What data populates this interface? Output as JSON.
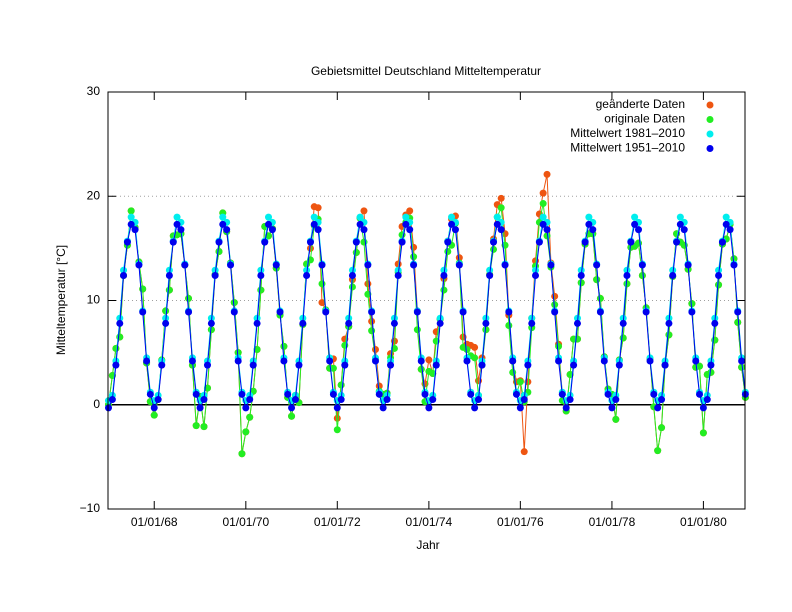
{
  "chart_data": {
    "type": "line",
    "title": "Gebietsmittel Deutschland Mitteltemperatur",
    "x_label": "Jahr",
    "y_label": "Mitteltemperatur [°C]",
    "x": [
      "1967-01",
      "1967-02",
      "1967-03",
      "1967-04",
      "1967-05",
      "1967-06",
      "1967-07",
      "1967-08",
      "1967-09",
      "1967-10",
      "1967-11",
      "1967-12",
      "1968-01",
      "1968-02",
      "1968-03",
      "1968-04",
      "1968-05",
      "1968-06",
      "1968-07",
      "1968-08",
      "1968-09",
      "1968-10",
      "1968-11",
      "1968-12",
      "1969-01",
      "1969-02",
      "1969-03",
      "1969-04",
      "1969-05",
      "1969-06",
      "1969-07",
      "1969-08",
      "1969-09",
      "1969-10",
      "1969-11",
      "1969-12",
      "1970-01",
      "1970-02",
      "1970-03",
      "1970-04",
      "1970-05",
      "1970-06",
      "1970-07",
      "1970-08",
      "1970-09",
      "1970-10",
      "1970-11",
      "1970-12",
      "1971-01",
      "1971-02",
      "1971-03",
      "1971-04",
      "1971-05",
      "1971-06",
      "1971-07",
      "1971-08",
      "1971-09",
      "1971-10",
      "1971-11",
      "1971-12",
      "1972-01",
      "1972-02",
      "1972-03",
      "1972-04",
      "1972-05",
      "1972-06",
      "1972-07",
      "1972-08",
      "1972-09",
      "1972-10",
      "1972-11",
      "1972-12",
      "1973-01",
      "1973-02",
      "1973-03",
      "1973-04",
      "1973-05",
      "1973-06",
      "1973-07",
      "1973-08",
      "1973-09",
      "1973-10",
      "1973-11",
      "1973-12",
      "1974-01",
      "1974-02",
      "1974-03",
      "1974-04",
      "1974-05",
      "1974-06",
      "1974-07",
      "1974-08",
      "1974-09",
      "1974-10",
      "1974-11",
      "1974-12",
      "1975-01",
      "1975-02",
      "1975-03",
      "1975-04",
      "1975-05",
      "1975-06",
      "1975-07",
      "1975-08",
      "1975-09",
      "1975-10",
      "1975-11",
      "1975-12",
      "1976-01",
      "1976-02",
      "1976-03",
      "1976-04",
      "1976-05",
      "1976-06",
      "1976-07",
      "1976-08",
      "1976-09",
      "1976-10",
      "1976-11",
      "1976-12",
      "1977-01",
      "1977-02",
      "1977-03",
      "1977-04",
      "1977-05",
      "1977-06",
      "1977-07",
      "1977-08",
      "1977-09",
      "1977-10",
      "1977-11",
      "1977-12",
      "1978-01",
      "1978-02",
      "1978-03",
      "1978-04",
      "1978-05",
      "1978-06",
      "1978-07",
      "1978-08",
      "1978-09",
      "1978-10",
      "1978-11",
      "1978-12",
      "1979-01",
      "1979-02",
      "1979-03",
      "1979-04",
      "1979-05",
      "1979-06",
      "1979-07",
      "1979-08",
      "1979-09",
      "1979-10",
      "1979-11",
      "1979-12",
      "1980-01",
      "1980-02",
      "1980-03",
      "1980-04",
      "1980-05",
      "1980-06",
      "1980-07",
      "1980-08",
      "1980-09",
      "1980-10",
      "1980-11",
      "1980-12"
    ],
    "series": [
      {
        "name": "geänderte Daten",
        "color": "#ee5511",
        "values": [
          0.0,
          2.8,
          5.4,
          6.5,
          12.4,
          15.3,
          18.6,
          17.0,
          13.7,
          11.1,
          4.0,
          0.3,
          -1.0,
          0.5,
          4.3,
          9.0,
          11.0,
          16.2,
          16.3,
          16.4,
          13.4,
          10.2,
          3.8,
          -2.0,
          0.8,
          -2.1,
          1.6,
          7.2,
          12.5,
          14.7,
          18.4,
          16.6,
          13.6,
          9.8,
          5.0,
          -4.7,
          -2.6,
          -1.2,
          1.3,
          5.3,
          11.0,
          17.1,
          16.2,
          16.9,
          13.1,
          8.6,
          5.6,
          0.7,
          -1.1,
          0.9,
          0.2,
          7.7,
          13.5,
          15.0,
          19.0,
          18.9,
          9.8,
          9.1,
          3.5,
          4.4,
          -1.3,
          1.9,
          6.3,
          7.5,
          12.0,
          14.6,
          17.9,
          18.6,
          11.6,
          8.0,
          5.3,
          1.8,
          1.0,
          1.1,
          4.9,
          6.1,
          13.5,
          17.1,
          18.2,
          18.6,
          15.1,
          9.0,
          3.4,
          2.0,
          4.3,
          3.0,
          7.0,
          8.2,
          12.1,
          15.7,
          17.8,
          18.1,
          14.1,
          6.5,
          5.8,
          5.7,
          5.5,
          2.3,
          4.5,
          7.2,
          12.5,
          15.9,
          19.2,
          19.8,
          16.4,
          8.6,
          4.2,
          2.2,
          2.3,
          -4.5,
          2.2,
          8.3,
          13.8,
          18.3,
          20.3,
          22.1,
          13.6,
          10.4,
          5.8,
          1.0,
          -0.6,
          2.9,
          6.3,
          6.3,
          11.7,
          15.4,
          16.4,
          16.4,
          12.0,
          10.2,
          4.6,
          1.5,
          1.0,
          -1.4,
          4.3,
          6.4,
          11.6,
          15.1,
          15.2,
          15.5,
          12.4,
          9.3,
          4.4,
          -0.2,
          -4.4,
          -2.2,
          3.8,
          6.7,
          12.3,
          16.4,
          15.6,
          15.3,
          13.0,
          9.7,
          3.6,
          3.7,
          -2.7,
          2.9,
          3.1,
          6.2,
          11.5,
          15.4,
          15.9,
          17.3,
          14.0,
          7.9,
          3.6,
          0.7
        ]
      },
      {
        "name": "originale Daten",
        "color": "#22ee22",
        "values": [
          0.0,
          2.8,
          5.4,
          6.5,
          12.4,
          15.3,
          18.6,
          17.0,
          13.7,
          11.1,
          4.0,
          0.3,
          -1.0,
          0.5,
          4.3,
          9.0,
          11.0,
          16.2,
          16.3,
          16.4,
          13.4,
          10.2,
          3.8,
          -2.0,
          0.8,
          -2.1,
          1.6,
          7.2,
          12.5,
          14.7,
          18.4,
          16.6,
          13.6,
          9.8,
          5.0,
          -4.7,
          -2.6,
          -1.2,
          1.3,
          5.3,
          11.0,
          17.1,
          16.2,
          16.9,
          13.1,
          8.6,
          5.6,
          0.7,
          -1.1,
          0.9,
          0.2,
          7.7,
          13.5,
          13.9,
          17.2,
          17.8,
          11.6,
          9.1,
          3.5,
          3.5,
          -2.4,
          1.9,
          5.7,
          7.5,
          11.3,
          14.6,
          17.9,
          15.6,
          10.6,
          7.1,
          4.4,
          1.3,
          1.0,
          1.1,
          4.5,
          5.4,
          12.7,
          16.3,
          17.5,
          17.9,
          14.2,
          7.2,
          3.4,
          0.3,
          3.2,
          3.0,
          6.1,
          8.2,
          11.0,
          14.7,
          15.3,
          17.4,
          13.6,
          5.5,
          5.3,
          4.7,
          4.5,
          0.9,
          3.8,
          7.2,
          12.5,
          14.9,
          18.0,
          18.9,
          15.3,
          7.6,
          3.1,
          1.1,
          2.2,
          0.3,
          1.2,
          7.4,
          13.3,
          17.5,
          19.3,
          16.2,
          13.2,
          9.6,
          5.6,
          0.4,
          -0.6,
          2.9,
          6.3,
          6.3,
          11.7,
          15.4,
          16.4,
          16.4,
          12.0,
          10.2,
          4.6,
          1.5,
          1.0,
          -1.4,
          4.3,
          6.4,
          11.6,
          15.1,
          15.2,
          15.5,
          12.4,
          9.3,
          4.4,
          -0.2,
          -4.4,
          -2.2,
          3.8,
          6.7,
          12.3,
          16.4,
          15.6,
          15.3,
          13.0,
          9.7,
          3.6,
          3.7,
          -2.7,
          2.9,
          3.1,
          6.2,
          11.5,
          15.4,
          15.9,
          17.3,
          14.0,
          7.9,
          3.6,
          0.7
        ]
      },
      {
        "name": "Mittelwert 1981–2010",
        "color": "#00eeee",
        "values": [
          0.4,
          0.9,
          4.2,
          8.3,
          12.9,
          15.7,
          18.0,
          17.5,
          13.5,
          9.0,
          4.5,
          1.2,
          0.4,
          0.9,
          4.2,
          8.3,
          12.9,
          15.7,
          18.0,
          17.5,
          13.5,
          9.0,
          4.5,
          1.2,
          0.4,
          0.9,
          4.2,
          8.3,
          12.9,
          15.7,
          18.0,
          17.5,
          13.5,
          9.0,
          4.5,
          1.2,
          0.4,
          0.9,
          4.2,
          8.3,
          12.9,
          15.7,
          18.0,
          17.5,
          13.5,
          9.0,
          4.5,
          1.2,
          0.4,
          0.9,
          4.2,
          8.3,
          12.9,
          15.7,
          18.0,
          17.5,
          13.5,
          9.0,
          4.5,
          1.2,
          0.4,
          0.9,
          4.2,
          8.3,
          12.9,
          15.7,
          18.0,
          17.5,
          13.5,
          9.0,
          4.5,
          1.2,
          0.4,
          0.9,
          4.2,
          8.3,
          12.9,
          15.7,
          18.0,
          17.5,
          13.5,
          9.0,
          4.5,
          1.2,
          0.4,
          0.9,
          4.2,
          8.3,
          12.9,
          15.7,
          18.0,
          17.5,
          13.5,
          9.0,
          4.5,
          1.2,
          0.4,
          0.9,
          4.2,
          8.3,
          12.9,
          15.7,
          18.0,
          17.5,
          13.5,
          9.0,
          4.5,
          1.2,
          0.4,
          0.9,
          4.2,
          8.3,
          12.9,
          15.7,
          18.0,
          17.5,
          13.5,
          9.0,
          4.5,
          1.2,
          0.4,
          0.9,
          4.2,
          8.3,
          12.9,
          15.7,
          18.0,
          17.5,
          13.5,
          9.0,
          4.5,
          1.2,
          0.4,
          0.9,
          4.2,
          8.3,
          12.9,
          15.7,
          18.0,
          17.5,
          13.5,
          9.0,
          4.5,
          1.2,
          0.4,
          0.9,
          4.2,
          8.3,
          12.9,
          15.7,
          18.0,
          17.5,
          13.5,
          9.0,
          4.5,
          1.2,
          0.4,
          0.9,
          4.2,
          8.3,
          12.9,
          15.7,
          18.0,
          17.5,
          13.5,
          9.0,
          4.5,
          1.2
        ]
      },
      {
        "name": "Mittelwert 1951–2010",
        "color": "#0000ee",
        "values": [
          -0.3,
          0.5,
          3.8,
          7.8,
          12.4,
          15.6,
          17.3,
          16.8,
          13.4,
          8.9,
          4.2,
          1.0,
          -0.3,
          0.5,
          3.8,
          7.8,
          12.4,
          15.6,
          17.3,
          16.8,
          13.4,
          8.9,
          4.2,
          1.0,
          -0.3,
          0.5,
          3.8,
          7.8,
          12.4,
          15.6,
          17.3,
          16.8,
          13.4,
          8.9,
          4.2,
          1.0,
          -0.3,
          0.5,
          3.8,
          7.8,
          12.4,
          15.6,
          17.3,
          16.8,
          13.4,
          8.9,
          4.2,
          1.0,
          -0.3,
          0.5,
          3.8,
          7.8,
          12.4,
          15.6,
          17.3,
          16.8,
          13.4,
          8.9,
          4.2,
          1.0,
          -0.3,
          0.5,
          3.8,
          7.8,
          12.4,
          15.6,
          17.3,
          16.8,
          13.4,
          8.9,
          4.2,
          1.0,
          -0.3,
          0.5,
          3.8,
          7.8,
          12.4,
          15.6,
          17.3,
          16.8,
          13.4,
          8.9,
          4.2,
          1.0,
          -0.3,
          0.5,
          3.8,
          7.8,
          12.4,
          15.6,
          17.3,
          16.8,
          13.4,
          8.9,
          4.2,
          1.0,
          -0.3,
          0.5,
          3.8,
          7.8,
          12.4,
          15.6,
          17.3,
          16.8,
          13.4,
          8.9,
          4.2,
          1.0,
          -0.3,
          0.5,
          3.8,
          7.8,
          12.4,
          15.6,
          17.3,
          16.8,
          13.4,
          8.9,
          4.2,
          1.0,
          -0.3,
          0.5,
          3.8,
          7.8,
          12.4,
          15.6,
          17.3,
          16.8,
          13.4,
          8.9,
          4.2,
          1.0,
          -0.3,
          0.5,
          3.8,
          7.8,
          12.4,
          15.6,
          17.3,
          16.8,
          13.4,
          8.9,
          4.2,
          1.0,
          -0.3,
          0.5,
          3.8,
          7.8,
          12.4,
          15.6,
          17.3,
          16.8,
          13.4,
          8.9,
          4.2,
          1.0,
          -0.3,
          0.5,
          3.8,
          7.8,
          12.4,
          15.6,
          17.3,
          16.8,
          13.4,
          8.9,
          4.2,
          1.0
        ]
      }
    ],
    "xlim": [
      "1966-12-28",
      "1980-11-28"
    ],
    "xticks": [
      {
        "value": "1968-01-01",
        "label": "01/01/68"
      },
      {
        "value": "1970-01-01",
        "label": "01/01/70"
      },
      {
        "value": "1972-01-01",
        "label": "01/01/72"
      },
      {
        "value": "1974-01-01",
        "label": "01/01/74"
      },
      {
        "value": "1976-01-01",
        "label": "01/01/76"
      },
      {
        "value": "1978-01-01",
        "label": "01/01/78"
      },
      {
        "value": "1980-01-01",
        "label": "01/01/80"
      }
    ],
    "ylim": [
      -10,
      30
    ],
    "yticks": [
      {
        "value": -10,
        "label": "−10"
      },
      0,
      10,
      20,
      30
    ],
    "grid": true,
    "zeroaxis": true,
    "legend": "top-right"
  }
}
